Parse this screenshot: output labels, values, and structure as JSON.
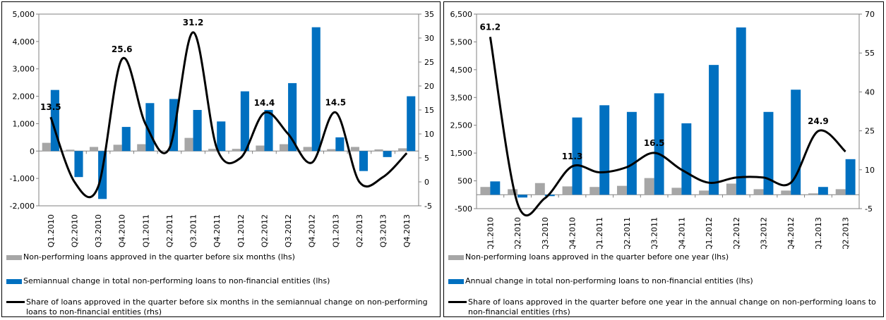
{
  "chart_data": [
    {
      "type": "combo",
      "categories": [
        "Q1.2010",
        "Q2.2010",
        "Q3.2010",
        "Q4.2010",
        "Q1.2011",
        "Q2.2011",
        "Q3.2011",
        "Q4.2011",
        "Q1.2012",
        "Q2.2012",
        "Q3.2012",
        "Q4.2012",
        "Q1.2013",
        "Q2.2013",
        "Q3.2013",
        "Q4.2013"
      ],
      "ylim": [
        -2000,
        5000
      ],
      "yticks": [
        {
          "value": -2000,
          "label": "-2,000"
        },
        {
          "value": -1000,
          "label": "-1,000"
        },
        0,
        {
          "value": 1000,
          "label": "1,000"
        },
        {
          "value": 2000,
          "label": "2,000"
        },
        {
          "value": 3000,
          "label": "3,000"
        },
        {
          "value": 4000,
          "label": "4,000"
        },
        {
          "value": 5000,
          "label": "5,000"
        }
      ],
      "y2lim": [
        -5,
        35
      ],
      "y2ticks": [
        -5,
        0,
        5,
        10,
        15,
        20,
        25,
        30,
        35
      ],
      "series": [
        {
          "name": "Non-performing loans approved in the quarter before six months (lhs)",
          "type": "bar",
          "color": "#a6a6a6",
          "values": [
            300,
            50,
            150,
            230,
            250,
            20,
            480,
            80,
            80,
            200,
            250,
            150,
            70,
            150,
            60,
            100
          ]
        },
        {
          "name": "Semiannual change in total non-performing loans to non-financial entities (lhs)",
          "type": "bar",
          "color": "#0070c0",
          "values": [
            2230,
            -950,
            -1750,
            880,
            1750,
            1900,
            1500,
            1080,
            2180,
            1500,
            2480,
            4520,
            500,
            -730,
            -220,
            2000
          ]
        },
        {
          "name": "Share of loans approved in the quarter before six months in the semiannual change on non-performing loans to non-financial entities (rhs)",
          "type": "line",
          "axis": "y2",
          "color": "#000000",
          "values": [
            13.5,
            0,
            -1,
            25.6,
            12,
            7,
            31.2,
            7,
            5,
            14.4,
            10,
            4,
            14.5,
            0,
            1,
            6
          ],
          "value_labels": [
            "13.5",
            null,
            null,
            "25.6",
            null,
            null,
            "31.2",
            null,
            null,
            "14.4",
            null,
            null,
            "14.5",
            null,
            null,
            null
          ]
        }
      ]
    },
    {
      "type": "combo",
      "categories": [
        "Q1.2010",
        "Q2.2010",
        "Q3.2010",
        "Q4.2010",
        "Q1.2011",
        "Q2.2011",
        "Q3.2011",
        "Q4.2011",
        "Q1.2012",
        "Q2.2012",
        "Q3.2012",
        "Q4.2012",
        "Q1.2013",
        "Q2.2013"
      ],
      "ylim": [
        -500,
        6500
      ],
      "yticks": [
        -500,
        500,
        {
          "value": 1500,
          "label": "1,500"
        },
        {
          "value": 2500,
          "label": "2,500"
        },
        {
          "value": 3500,
          "label": "3,500"
        },
        {
          "value": 4500,
          "label": "4,500"
        },
        {
          "value": 5500,
          "label": "5,500"
        },
        {
          "value": 6500,
          "label": "6,500"
        }
      ],
      "y2lim": [
        -5,
        70
      ],
      "y2ticks": [
        -5,
        10,
        25,
        40,
        55,
        70
      ],
      "series": [
        {
          "name": "Non-performing loans approved in the quarter before one year (lhs)",
          "type": "bar",
          "color": "#a6a6a6",
          "values": [
            280,
            200,
            420,
            300,
            280,
            320,
            600,
            250,
            150,
            400,
            200,
            150,
            50,
            200
          ]
        },
        {
          "name": "Annual change in total non-performing loans to non-financial entities (lhs)",
          "type": "bar",
          "color": "#0070c0",
          "values": [
            480,
            -100,
            -50,
            2780,
            3220,
            2980,
            3650,
            2570,
            4670,
            6020,
            2980,
            3780,
            280,
            1280
          ]
        },
        {
          "name": "Share of loans approved in the quarter before one year in the annual change on non-performing loans to non-financial entities (rhs)",
          "type": "line",
          "axis": "y2",
          "color": "#000000",
          "values": [
            61.2,
            -3,
            -1,
            11.3,
            9,
            11,
            16.5,
            10,
            5,
            7,
            7,
            5,
            24.9,
            17
          ],
          "value_labels": [
            "61.2",
            null,
            null,
            "11.3",
            null,
            null,
            "16.5",
            null,
            null,
            null,
            null,
            null,
            "24.9",
            null
          ]
        }
      ]
    }
  ]
}
